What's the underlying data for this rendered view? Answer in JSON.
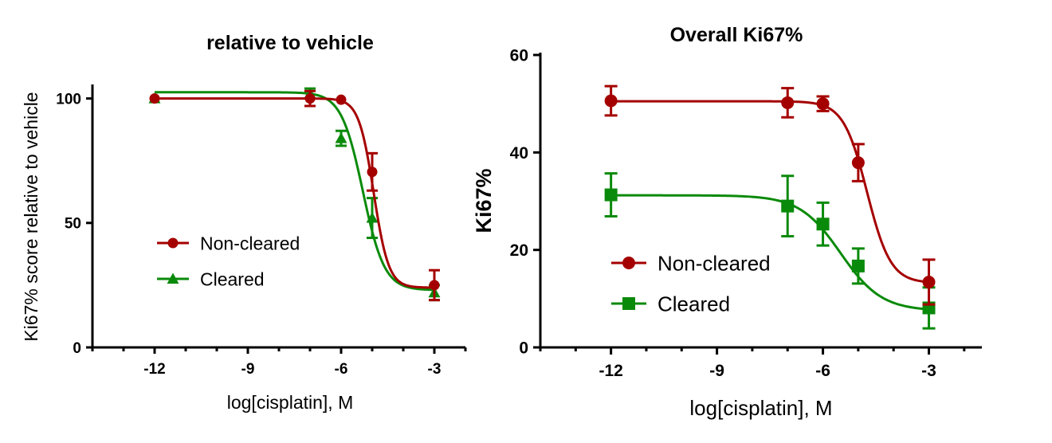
{
  "colors": {
    "noncleared": "#a50000",
    "cleared": "#0a8a0a",
    "axis": "#000000"
  },
  "chart_data": [
    {
      "type": "line",
      "title": "relative to vehicle",
      "xlabel": "log[cisplatin], M",
      "ylabel": "Ki67% score relative to vehicle",
      "xlim": [
        -14,
        -2
      ],
      "ylim": [
        0,
        105
      ],
      "xticks": [
        -12,
        -9,
        -6,
        -3
      ],
      "xtick_labels": [
        "-12",
        "-9",
        "-6",
        "-3"
      ],
      "yticks": [
        0,
        50,
        100
      ],
      "ytick_labels": [
        "0",
        "50",
        "100"
      ],
      "legend_position": "center-left",
      "series": [
        {
          "name": "Non-cleared",
          "marker": "circle",
          "x": [
            -12,
            -7,
            -6,
            -5,
            -3
          ],
          "y": [
            100,
            100,
            99.5,
            70.5,
            25
          ],
          "err": [
            0,
            3,
            0,
            7.5,
            6
          ],
          "fit": {
            "top": 100,
            "bottom": 24,
            "logec50": -4.95,
            "hill": 1.8
          }
        },
        {
          "name": "Cleared",
          "marker": "triangle",
          "x": [
            -12,
            -7,
            -6,
            -5,
            -3
          ],
          "y": [
            100,
            102,
            84,
            52,
            22
          ],
          "err": [
            0,
            2,
            3,
            8,
            3
          ],
          "fit": {
            "top": 102.5,
            "bottom": 23,
            "logec50": -5.3,
            "hill": 1.25
          }
        }
      ]
    },
    {
      "type": "line",
      "title": "Overall Ki67%",
      "xlabel": "log[cisplatin], M",
      "ylabel": "Ki67%",
      "xlim": [
        -14,
        -1.5
      ],
      "ylim": [
        0,
        60
      ],
      "xticks": [
        -12,
        -9,
        -6,
        -3
      ],
      "xtick_labels": [
        "-12",
        "-9",
        "-6",
        "-3"
      ],
      "yticks": [
        0,
        20,
        40,
        60
      ],
      "ytick_labels": [
        "0",
        "20",
        "40",
        "60"
      ],
      "legend_position": "center-left",
      "series": [
        {
          "name": "Non-cleared",
          "marker": "circle",
          "x": [
            -12,
            -7,
            -6,
            -5,
            -3
          ],
          "y": [
            50.6,
            50.2,
            50,
            37.9,
            13.4
          ],
          "err": [
            3,
            3,
            1.5,
            3.8,
            4.6
          ],
          "fit": {
            "top": 50.5,
            "bottom": 13.2,
            "logec50": -4.75,
            "hill": 1.3
          }
        },
        {
          "name": "Cleared",
          "marker": "square",
          "x": [
            -12,
            -7,
            -6,
            -5,
            -3
          ],
          "y": [
            31.3,
            29,
            25.3,
            16.7,
            8.1
          ],
          "err": [
            4.4,
            6.2,
            4.4,
            3.6,
            4.2
          ],
          "fit": {
            "top": 31.2,
            "bottom": 7.5,
            "logec50": -5.5,
            "hill": 0.75
          }
        }
      ]
    }
  ]
}
